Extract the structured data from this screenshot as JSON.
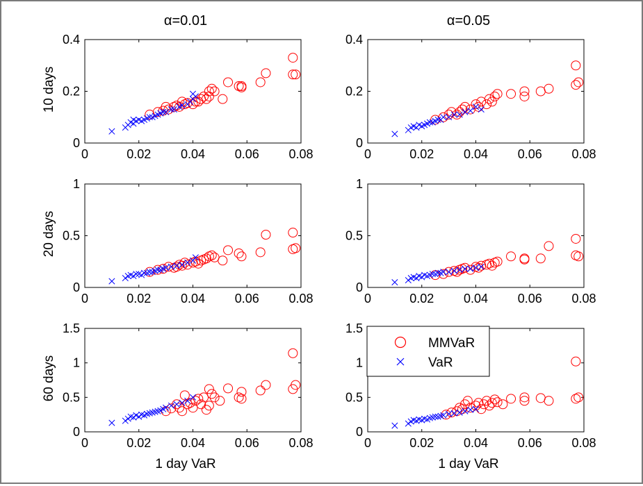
{
  "colors": {
    "mmvar": "#ff0000",
    "var": "#0000ff",
    "axis": "#000000",
    "frame": "#7a7a7a"
  },
  "titles": {
    "left": "α=0.01",
    "right": "α=0.05"
  },
  "row_labels": [
    "10 days",
    "20 days",
    "60 days"
  ],
  "xlabel": "1 day VaR",
  "legend": {
    "mmvar": "MMVaR",
    "var": "VaR",
    "placement": "top-left of bottom-right panel"
  },
  "chart_data": [
    {
      "type": "scatter",
      "title": "α=0.01",
      "ylabel": "10 days",
      "xlabel": "",
      "xlim": [
        0,
        0.08
      ],
      "ylim": [
        0,
        0.4
      ],
      "xticks": [
        "0",
        "0.02",
        "0.04",
        "0.06",
        "0.08"
      ],
      "yticks": [
        "0",
        "0.2",
        "0.4"
      ],
      "series": [
        {
          "name": "MMVaR",
          "marker": "circle",
          "x": [
            0.024,
            0.027,
            0.029,
            0.03,
            0.031,
            0.033,
            0.034,
            0.035,
            0.036,
            0.037,
            0.038,
            0.04,
            0.041,
            0.042,
            0.043,
            0.044,
            0.045,
            0.046,
            0.046,
            0.047,
            0.048,
            0.051,
            0.053,
            0.057,
            0.058,
            0.058,
            0.065,
            0.067,
            0.077,
            0.077,
            0.078
          ],
          "y": [
            0.11,
            0.12,
            0.125,
            0.14,
            0.13,
            0.14,
            0.145,
            0.14,
            0.16,
            0.15,
            0.155,
            0.15,
            0.16,
            0.16,
            0.17,
            0.18,
            0.17,
            0.18,
            0.2,
            0.21,
            0.2,
            0.17,
            0.235,
            0.22,
            0.215,
            0.22,
            0.235,
            0.27,
            0.265,
            0.33,
            0.265
          ]
        },
        {
          "name": "VaR",
          "marker": "x",
          "x": [
            0.01,
            0.015,
            0.016,
            0.017,
            0.018,
            0.018,
            0.019,
            0.02,
            0.021,
            0.022,
            0.023,
            0.024,
            0.025,
            0.026,
            0.027,
            0.028,
            0.029,
            0.03,
            0.032,
            0.033,
            0.035,
            0.036,
            0.038,
            0.039,
            0.04,
            0.041,
            0.04
          ],
          "y": [
            0.045,
            0.06,
            0.07,
            0.08,
            0.075,
            0.09,
            0.085,
            0.09,
            0.085,
            0.09,
            0.095,
            0.1,
            0.1,
            0.105,
            0.11,
            0.115,
            0.12,
            0.12,
            0.13,
            0.13,
            0.14,
            0.145,
            0.15,
            0.16,
            0.17,
            0.18,
            0.19
          ]
        }
      ]
    },
    {
      "type": "scatter",
      "title": "α=0.05",
      "ylabel": "",
      "xlabel": "",
      "xlim": [
        0,
        0.08
      ],
      "ylim": [
        0,
        0.4
      ],
      "xticks": [
        "0",
        "0.02",
        "0.04",
        "0.06",
        "0.08"
      ],
      "yticks": [
        "0",
        "0.2",
        "0.4"
      ],
      "series": [
        {
          "name": "MMVaR",
          "marker": "circle",
          "x": [
            0.025,
            0.028,
            0.03,
            0.031,
            0.033,
            0.034,
            0.035,
            0.036,
            0.038,
            0.04,
            0.041,
            0.042,
            0.044,
            0.045,
            0.046,
            0.047,
            0.048,
            0.053,
            0.058,
            0.058,
            0.064,
            0.067,
            0.077,
            0.077,
            0.078
          ],
          "y": [
            0.09,
            0.1,
            0.11,
            0.12,
            0.11,
            0.12,
            0.13,
            0.14,
            0.13,
            0.15,
            0.14,
            0.16,
            0.15,
            0.17,
            0.16,
            0.18,
            0.19,
            0.19,
            0.2,
            0.18,
            0.2,
            0.21,
            0.225,
            0.3,
            0.235
          ]
        },
        {
          "name": "VaR",
          "marker": "x",
          "x": [
            0.01,
            0.015,
            0.016,
            0.017,
            0.018,
            0.019,
            0.02,
            0.021,
            0.022,
            0.023,
            0.024,
            0.025,
            0.026,
            0.027,
            0.028,
            0.03,
            0.032,
            0.034,
            0.036,
            0.038,
            0.04,
            0.042
          ],
          "y": [
            0.035,
            0.05,
            0.06,
            0.065,
            0.06,
            0.07,
            0.065,
            0.07,
            0.075,
            0.08,
            0.08,
            0.085,
            0.09,
            0.09,
            0.1,
            0.1,
            0.11,
            0.11,
            0.12,
            0.125,
            0.14,
            0.13
          ]
        }
      ]
    },
    {
      "type": "scatter",
      "title": "",
      "ylabel": "20 days",
      "xlabel": "",
      "xlim": [
        0,
        0.08
      ],
      "ylim": [
        0,
        1
      ],
      "xticks": [
        "0",
        "0.02",
        "0.04",
        "0.06",
        "0.08"
      ],
      "yticks": [
        "0",
        "0.5",
        "1"
      ],
      "series": [
        {
          "name": "MMVaR",
          "marker": "circle",
          "x": [
            0.024,
            0.027,
            0.029,
            0.031,
            0.033,
            0.034,
            0.035,
            0.036,
            0.037,
            0.038,
            0.04,
            0.041,
            0.042,
            0.043,
            0.044,
            0.045,
            0.046,
            0.047,
            0.048,
            0.051,
            0.053,
            0.057,
            0.058,
            0.065,
            0.067,
            0.077,
            0.077,
            0.078
          ],
          "y": [
            0.15,
            0.17,
            0.18,
            0.2,
            0.19,
            0.2,
            0.22,
            0.21,
            0.24,
            0.22,
            0.24,
            0.25,
            0.23,
            0.26,
            0.27,
            0.28,
            0.3,
            0.31,
            0.29,
            0.26,
            0.36,
            0.33,
            0.3,
            0.34,
            0.51,
            0.37,
            0.53,
            0.38
          ]
        },
        {
          "name": "VaR",
          "marker": "x",
          "x": [
            0.01,
            0.015,
            0.016,
            0.017,
            0.018,
            0.019,
            0.02,
            0.021,
            0.022,
            0.023,
            0.024,
            0.025,
            0.026,
            0.027,
            0.028,
            0.029,
            0.03,
            0.032,
            0.034,
            0.036,
            0.038,
            0.04,
            0.041
          ],
          "y": [
            0.06,
            0.09,
            0.11,
            0.12,
            0.11,
            0.13,
            0.13,
            0.12,
            0.14,
            0.14,
            0.15,
            0.15,
            0.16,
            0.17,
            0.17,
            0.18,
            0.19,
            0.2,
            0.21,
            0.22,
            0.24,
            0.26,
            0.29
          ]
        }
      ]
    },
    {
      "type": "scatter",
      "title": "",
      "ylabel": "",
      "xlabel": "",
      "xlim": [
        0,
        0.08
      ],
      "ylim": [
        0,
        1
      ],
      "xticks": [
        "0",
        "0.02",
        "0.04",
        "0.06",
        "0.08"
      ],
      "yticks": [
        "0",
        "0.5",
        "1"
      ],
      "series": [
        {
          "name": "MMVaR",
          "marker": "circle",
          "x": [
            0.025,
            0.028,
            0.03,
            0.032,
            0.033,
            0.034,
            0.035,
            0.036,
            0.038,
            0.04,
            0.041,
            0.042,
            0.044,
            0.045,
            0.046,
            0.047,
            0.048,
            0.053,
            0.058,
            0.058,
            0.064,
            0.067,
            0.077,
            0.077,
            0.078
          ],
          "y": [
            0.12,
            0.13,
            0.15,
            0.16,
            0.15,
            0.17,
            0.18,
            0.19,
            0.17,
            0.2,
            0.19,
            0.21,
            0.22,
            0.23,
            0.21,
            0.24,
            0.25,
            0.3,
            0.27,
            0.28,
            0.28,
            0.4,
            0.31,
            0.47,
            0.3
          ]
        },
        {
          "name": "VaR",
          "marker": "x",
          "x": [
            0.01,
            0.015,
            0.016,
            0.017,
            0.018,
            0.019,
            0.02,
            0.021,
            0.022,
            0.023,
            0.024,
            0.025,
            0.026,
            0.027,
            0.028,
            0.03,
            0.032,
            0.034,
            0.036,
            0.038,
            0.04,
            0.042
          ],
          "y": [
            0.05,
            0.07,
            0.09,
            0.1,
            0.09,
            0.11,
            0.1,
            0.12,
            0.11,
            0.12,
            0.13,
            0.13,
            0.14,
            0.14,
            0.15,
            0.15,
            0.16,
            0.17,
            0.18,
            0.18,
            0.19,
            0.2
          ]
        }
      ]
    },
    {
      "type": "scatter",
      "title": "",
      "ylabel": "60 days",
      "xlabel": "1 day VaR",
      "xlim": [
        0,
        0.08
      ],
      "ylim": [
        0,
        1.5
      ],
      "xticks": [
        "0",
        "0.02",
        "0.04",
        "0.06",
        "0.08"
      ],
      "yticks": [
        "0",
        "0.5",
        "1",
        "1.5"
      ],
      "series": [
        {
          "name": "MMVaR",
          "marker": "circle",
          "x": [
            0.03,
            0.032,
            0.034,
            0.035,
            0.036,
            0.037,
            0.038,
            0.039,
            0.04,
            0.041,
            0.042,
            0.043,
            0.044,
            0.045,
            0.046,
            0.046,
            0.047,
            0.048,
            0.05,
            0.053,
            0.057,
            0.058,
            0.058,
            0.065,
            0.067,
            0.077,
            0.077,
            0.078
          ],
          "y": [
            0.3,
            0.34,
            0.4,
            0.35,
            0.3,
            0.53,
            0.4,
            0.42,
            0.35,
            0.45,
            0.48,
            0.4,
            0.5,
            0.32,
            0.38,
            0.62,
            0.55,
            0.5,
            0.45,
            0.63,
            0.5,
            0.48,
            0.58,
            0.6,
            0.68,
            0.62,
            1.14,
            0.68
          ]
        },
        {
          "name": "VaR",
          "marker": "x",
          "x": [
            0.01,
            0.015,
            0.016,
            0.017,
            0.018,
            0.019,
            0.02,
            0.021,
            0.022,
            0.023,
            0.024,
            0.025,
            0.026,
            0.027,
            0.028,
            0.029,
            0.03,
            0.032,
            0.034,
            0.036,
            0.038,
            0.04
          ],
          "y": [
            0.13,
            0.16,
            0.19,
            0.22,
            0.21,
            0.24,
            0.22,
            0.25,
            0.24,
            0.26,
            0.27,
            0.28,
            0.29,
            0.3,
            0.31,
            0.33,
            0.35,
            0.38,
            0.4,
            0.42,
            0.45,
            0.5
          ]
        }
      ]
    },
    {
      "type": "scatter",
      "title": "",
      "ylabel": "",
      "xlabel": "1 day VaR",
      "xlim": [
        0,
        0.08
      ],
      "ylim": [
        0,
        1.5
      ],
      "xticks": [
        "0",
        "0.02",
        "0.04",
        "0.06",
        "0.08"
      ],
      "yticks": [
        "0",
        "0.5",
        "1",
        "1.5"
      ],
      "series": [
        {
          "name": "MMVaR",
          "marker": "circle",
          "x": [
            0.029,
            0.031,
            0.033,
            0.034,
            0.035,
            0.036,
            0.037,
            0.038,
            0.04,
            0.041,
            0.042,
            0.043,
            0.044,
            0.045,
            0.046,
            0.047,
            0.048,
            0.05,
            0.053,
            0.058,
            0.058,
            0.064,
            0.067,
            0.077,
            0.077,
            0.078
          ],
          "y": [
            0.25,
            0.28,
            0.3,
            0.35,
            0.33,
            0.4,
            0.45,
            0.35,
            0.38,
            0.42,
            0.33,
            0.4,
            0.45,
            0.38,
            0.42,
            0.47,
            0.43,
            0.4,
            0.48,
            0.45,
            0.5,
            0.49,
            0.45,
            0.48,
            1.02,
            0.5
          ]
        },
        {
          "name": "VaR",
          "marker": "x",
          "x": [
            0.01,
            0.015,
            0.016,
            0.017,
            0.018,
            0.019,
            0.02,
            0.021,
            0.022,
            0.023,
            0.024,
            0.025,
            0.026,
            0.027,
            0.028,
            0.03,
            0.032,
            0.034,
            0.036,
            0.038,
            0.04
          ],
          "y": [
            0.09,
            0.12,
            0.15,
            0.17,
            0.16,
            0.18,
            0.17,
            0.19,
            0.18,
            0.2,
            0.21,
            0.22,
            0.22,
            0.23,
            0.24,
            0.26,
            0.27,
            0.28,
            0.3,
            0.32,
            0.33
          ]
        }
      ]
    }
  ]
}
